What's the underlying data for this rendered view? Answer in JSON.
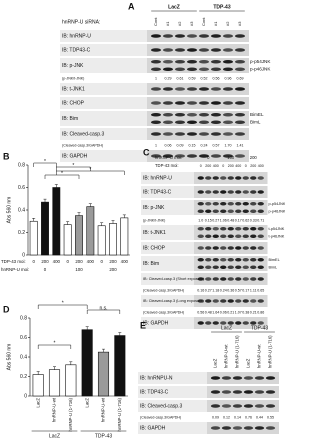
{
  "panels": {
    "A": {
      "label": "A",
      "lane_header": "hnRNP-U siRNA:",
      "groups": [
        "LacZ",
        "TDP-43"
      ],
      "lanes": [
        "Cont",
        "#1",
        "#2",
        "#3",
        "Cont",
        "#1",
        "#2",
        "#3"
      ],
      "rows": [
        {
          "label": "IB: hnRNP-U"
        },
        {
          "label": "IB: TDP43-C"
        },
        {
          "label": "IB: p-JNK",
          "bands": [
            "p-p54JNK",
            "p-p46JNK"
          ]
        },
        {
          "label": "(p-JNK/t-JNK)",
          "values": [
            "1",
            "0.29",
            "0.61",
            "0.59",
            "0.52",
            "0.56",
            "0.96",
            "0.69"
          ]
        },
        {
          "label": "IB: t-JNK1"
        },
        {
          "label": "IB: CHOP"
        },
        {
          "label": "IB: Bim",
          "bands": [
            "BimEL",
            "BimL"
          ]
        },
        {
          "label": "IB: Cleaved-casp.3"
        },
        {
          "label": "(Cleaved-casp.3/GAPDH)",
          "values": [
            "1",
            "0.06",
            "0.09",
            "0.15",
            "0.24",
            "0.57",
            "1.70",
            "1.41"
          ]
        },
        {
          "label": "IB: GAPDH"
        }
      ]
    },
    "B": {
      "label": "B",
      "y_label": "Abs 560 nm",
      "x_label": "TDP-43 moi:",
      "group_label": "hnRNP-U moi:",
      "groups": [
        "0",
        "100",
        "200"
      ],
      "categories": [
        "0",
        "200",
        "400",
        "0",
        "200",
        "400",
        "0",
        "200",
        "400"
      ],
      "values": [
        0.3,
        0.47,
        0.6,
        0.27,
        0.35,
        0.43,
        0.26,
        0.28,
        0.33
      ],
      "colors": [
        "#ffffff",
        "#111111",
        "#111111",
        "#ffffff",
        "#9a9a9a",
        "#9a9a9a",
        "#ffffff",
        "#ffffff",
        "#ffffff"
      ],
      "ylim": [
        0,
        0.8
      ],
      "yticks": [
        0,
        0.2,
        0.4,
        0.6,
        0.8
      ],
      "annotations": [
        "*",
        "*",
        "*",
        "*"
      ]
    },
    "C": {
      "label": "C",
      "group_header": "hnRNP-U moi:",
      "lane_header": "TDP-43 moi:",
      "groups": [
        "0",
        "100",
        "200"
      ],
      "lanes": [
        "0",
        "200",
        "400",
        "0",
        "200",
        "400",
        "0",
        "200",
        "400"
      ],
      "rows": [
        {
          "label": "IB: hnRNP-U"
        },
        {
          "label": "IB: TDP43-C"
        },
        {
          "label": "IB: p-JNK",
          "bands": [
            "p-p54JNK",
            "p-p46JNK"
          ]
        },
        {
          "label": "(p-JNK/t-JNK)",
          "values": [
            "1.0",
            "0.15",
            "0.27",
            "1.06",
            "0.48",
            "0.17",
            "0.62",
            "0.33",
            "0.71"
          ]
        },
        {
          "label": "IB: t-JNK1",
          "bands": [
            "t-p54JNK",
            "t-p46JNK"
          ]
        },
        {
          "label": "IB: CHOP"
        },
        {
          "label": "IB: Bim",
          "bands": [
            "BimEL",
            "BimL"
          ]
        },
        {
          "label": "IB: Cleaved-casp.3 (Short exposure)"
        },
        {
          "label": "(Cleaved-casp.3/GAPDH)",
          "values": [
            "0.16",
            "0.27",
            "1.18",
            "0.24",
            "0.36",
            "0.57",
            "0.17",
            "1.11",
            "0.65"
          ]
        },
        {
          "label": "IB: Cleaved-casp.3 (Long exposure)"
        },
        {
          "label": "(Cleaved-casp.3/GAPDH)",
          "values": [
            "0.56",
            "0.48",
            "1.64",
            "0.06",
            "0.21",
            "1.07",
            "0.38",
            "0.21",
            "0.86"
          ]
        },
        {
          "label": "IB: GAPDH"
        }
      ]
    },
    "D": {
      "label": "D",
      "y_label": "Abs 560 nm",
      "groups": [
        "LacZ",
        "TDP-43"
      ],
      "categories": [
        "LacZ",
        "hnRNP-U-wt",
        "hnRNP-U (1-716)",
        "LacZ",
        "hnRNP-U-wt",
        "hnRNP-U (1-716)"
      ],
      "values": [
        0.22,
        0.27,
        0.32,
        0.68,
        0.45,
        0.62
      ],
      "colors": [
        "#ffffff",
        "#ffffff",
        "#ffffff",
        "#111111",
        "#9a9a9a",
        "#111111"
      ],
      "ylim": [
        0,
        0.8
      ],
      "yticks": [
        0,
        0.2,
        0.4,
        0.6,
        0.8
      ],
      "annotations": [
        "*",
        "*",
        "n.s."
      ]
    },
    "E": {
      "label": "E",
      "groups": [
        "LacZ",
        "TDP-43"
      ],
      "lanes": [
        "LacZ",
        "hnRNP-U-wt",
        "hnRNP-U (1-716)",
        "LacZ",
        "hnRNP-U-wt",
        "hnRNP-U (1-716)"
      ],
      "rows": [
        {
          "label": "IB: hnRNPU-N"
        },
        {
          "label": "IB: TDP43-C"
        },
        {
          "label": "IB: Cleaved-casp.3"
        },
        {
          "label": "(Cleaved-casp.3/GAPDH)",
          "values": [
            "0.09",
            "0.12",
            "0.14",
            "0.76",
            "0.44",
            "0.55"
          ]
        },
        {
          "label": "IB: GAPDH"
        }
      ]
    }
  }
}
